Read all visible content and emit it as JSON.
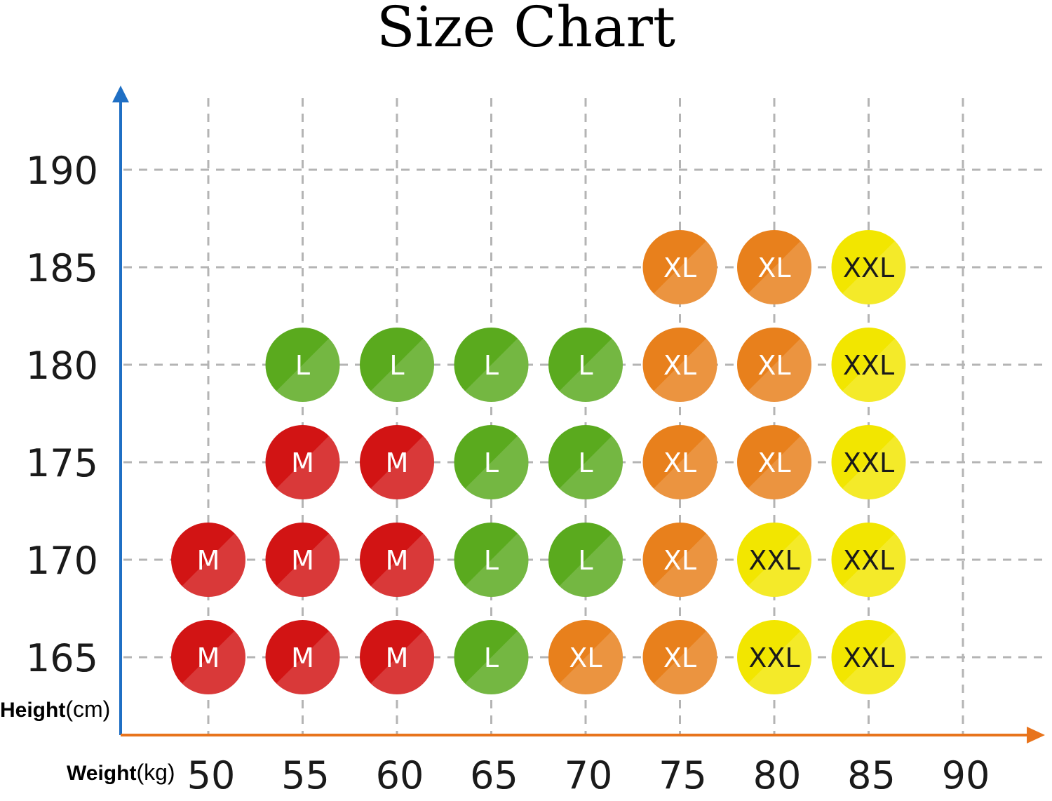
{
  "chart_data": {
    "type": "scatter",
    "title": "Size Chart",
    "xlabel": {
      "name": "Weight",
      "unit": "(kg)"
    },
    "ylabel": {
      "name": "Height",
      "unit": "(cm)"
    },
    "x_ticks": [
      50,
      55,
      60,
      65,
      70,
      75,
      80,
      85,
      90
    ],
    "y_ticks": [
      165,
      170,
      175,
      180,
      185,
      190
    ],
    "grid": true,
    "colors": {
      "M": "#d21414",
      "L": "#5aaa1e",
      "XL": "#e8801c",
      "XXL": "#f2e600",
      "y_axis": "#1f6fc4",
      "x_axis": "#e8741c",
      "grid": "#b4b4b4"
    },
    "points": [
      {
        "x": 50,
        "y": 165,
        "size": "M"
      },
      {
        "x": 55,
        "y": 165,
        "size": "M"
      },
      {
        "x": 60,
        "y": 165,
        "size": "M"
      },
      {
        "x": 65,
        "y": 165,
        "size": "L"
      },
      {
        "x": 70,
        "y": 165,
        "size": "XL"
      },
      {
        "x": 75,
        "y": 165,
        "size": "XL"
      },
      {
        "x": 80,
        "y": 165,
        "size": "XXL"
      },
      {
        "x": 85,
        "y": 165,
        "size": "XXL"
      },
      {
        "x": 50,
        "y": 170,
        "size": "M"
      },
      {
        "x": 55,
        "y": 170,
        "size": "M"
      },
      {
        "x": 60,
        "y": 170,
        "size": "M"
      },
      {
        "x": 65,
        "y": 170,
        "size": "L"
      },
      {
        "x": 70,
        "y": 170,
        "size": "L"
      },
      {
        "x": 75,
        "y": 170,
        "size": "XL"
      },
      {
        "x": 80,
        "y": 170,
        "size": "XXL"
      },
      {
        "x": 85,
        "y": 170,
        "size": "XXL"
      },
      {
        "x": 55,
        "y": 175,
        "size": "M"
      },
      {
        "x": 60,
        "y": 175,
        "size": "M"
      },
      {
        "x": 65,
        "y": 175,
        "size": "L"
      },
      {
        "x": 70,
        "y": 175,
        "size": "L"
      },
      {
        "x": 75,
        "y": 175,
        "size": "XL"
      },
      {
        "x": 80,
        "y": 175,
        "size": "XL"
      },
      {
        "x": 85,
        "y": 175,
        "size": "XXL"
      },
      {
        "x": 55,
        "y": 180,
        "size": "L"
      },
      {
        "x": 60,
        "y": 180,
        "size": "L"
      },
      {
        "x": 65,
        "y": 180,
        "size": "L"
      },
      {
        "x": 70,
        "y": 180,
        "size": "L"
      },
      {
        "x": 75,
        "y": 180,
        "size": "XL"
      },
      {
        "x": 80,
        "y": 180,
        "size": "XL"
      },
      {
        "x": 85,
        "y": 180,
        "size": "XXL"
      },
      {
        "x": 75,
        "y": 185,
        "size": "XL"
      },
      {
        "x": 80,
        "y": 185,
        "size": "XL"
      },
      {
        "x": 85,
        "y": 185,
        "size": "XXL"
      }
    ]
  }
}
